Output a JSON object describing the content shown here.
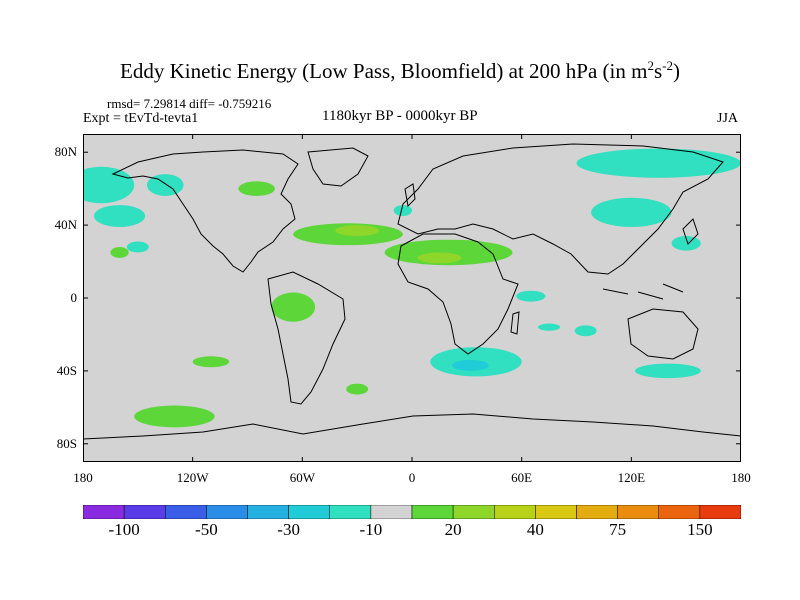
{
  "title": {
    "text": "Eddy Kinetic Energy (Low Pass, Bloomfield) at 200 hPa (in m",
    "sup1": "2",
    "mid": "s",
    "sup2": "-2",
    "end": ")"
  },
  "stats": "rmsd= 7.29814  diff= -0.759216",
  "experiment": "Expt = tEvTd-tevta1",
  "period": "1180kyr BP - 0000kyr BP",
  "season": "JJA",
  "colors": {
    "land_outline": "#000000",
    "neutral": "#d3d3d3",
    "frame": "#000000"
  },
  "x_axis": {
    "ticks": [
      {
        "lon": -180,
        "label": "180"
      },
      {
        "lon": -120,
        "label": "120W"
      },
      {
        "lon": -60,
        "label": "60W"
      },
      {
        "lon": 0,
        "label": "0"
      },
      {
        "lon": 60,
        "label": "60E"
      },
      {
        "lon": 120,
        "label": "120E"
      },
      {
        "lon": 180,
        "label": "180"
      }
    ]
  },
  "y_axis": {
    "ticks": [
      {
        "lat": 80,
        "label": "80N"
      },
      {
        "lat": 40,
        "label": "40N"
      },
      {
        "lat": 0,
        "label": "0"
      },
      {
        "lat": -40,
        "label": "40S"
      },
      {
        "lat": -80,
        "label": "80S"
      }
    ]
  },
  "colorbar": {
    "colors": [
      "#8a2be2",
      "#5a3be8",
      "#3a5ee8",
      "#2a8ee8",
      "#24b0e0",
      "#20ccd8",
      "#30e0c0",
      "#d3d3d3",
      "#5dd63a",
      "#8fd62a",
      "#b8d21a",
      "#d8c814",
      "#e4ac10",
      "#ea8c10",
      "#ec6410",
      "#e83c10"
    ],
    "labels": [
      {
        "boundary": 2,
        "text": "-100"
      },
      {
        "boundary": 4,
        "text": "-50"
      },
      {
        "boundary": 6,
        "text": "-30"
      },
      {
        "boundary": 8,
        "text": "-10"
      },
      {
        "boundary": 10,
        "text": "20"
      },
      {
        "boundary": 12,
        "text": "40"
      },
      {
        "boundary": 14,
        "text": "75"
      },
      {
        "boundary": 16,
        "text": "150"
      }
    ]
  },
  "fields": [
    {
      "value": -15,
      "color": "#30e0c0",
      "center": [
        -170,
        62
      ],
      "radius": [
        18,
        10
      ]
    },
    {
      "value": -15,
      "color": "#30e0c0",
      "center": [
        -160,
        45
      ],
      "radius": [
        14,
        6
      ]
    },
    {
      "value": -15,
      "color": "#30e0c0",
      "center": [
        -150,
        28
      ],
      "radius": [
        6,
        3
      ]
    },
    {
      "value": -15,
      "color": "#30e0c0",
      "center": [
        -135,
        62
      ],
      "radius": [
        10,
        6
      ]
    },
    {
      "value": -15,
      "color": "#30e0c0",
      "center": [
        135,
        74
      ],
      "radius": [
        45,
        8
      ]
    },
    {
      "value": -15,
      "color": "#30e0c0",
      "center": [
        120,
        47
      ],
      "radius": [
        22,
        8
      ]
    },
    {
      "value": -15,
      "color": "#30e0c0",
      "center": [
        150,
        30
      ],
      "radius": [
        8,
        4
      ]
    },
    {
      "value": -15,
      "color": "#30e0c0",
      "center": [
        65,
        1
      ],
      "radius": [
        8,
        3
      ]
    },
    {
      "value": -15,
      "color": "#30e0c0",
      "center": [
        35,
        -35
      ],
      "radius": [
        25,
        8
      ]
    },
    {
      "value": -20,
      "color": "#20ccd8",
      "center": [
        32,
        -37
      ],
      "radius": [
        10,
        3
      ]
    },
    {
      "value": -15,
      "color": "#30e0c0",
      "center": [
        95,
        -18
      ],
      "radius": [
        6,
        3
      ]
    },
    {
      "value": -15,
      "color": "#30e0c0",
      "center": [
        140,
        -40
      ],
      "radius": [
        18,
        4
      ]
    },
    {
      "value": -15,
      "color": "#30e0c0",
      "center": [
        75,
        -16
      ],
      "radius": [
        6,
        2
      ]
    },
    {
      "value": -15,
      "color": "#30e0c0",
      "center": [
        -5,
        48
      ],
      "radius": [
        5,
        3
      ]
    },
    {
      "value": 15,
      "color": "#5dd63a",
      "center": [
        -35,
        35
      ],
      "radius": [
        30,
        6
      ]
    },
    {
      "value": 15,
      "color": "#5dd63a",
      "center": [
        20,
        25
      ],
      "radius": [
        35,
        7
      ]
    },
    {
      "value": 25,
      "color": "#8fd62a",
      "center": [
        -30,
        37
      ],
      "radius": [
        12,
        3
      ]
    },
    {
      "value": 25,
      "color": "#8fd62a",
      "center": [
        15,
        22
      ],
      "radius": [
        12,
        3
      ]
    },
    {
      "value": 15,
      "color": "#5dd63a",
      "center": [
        -85,
        60
      ],
      "radius": [
        10,
        4
      ]
    },
    {
      "value": 15,
      "color": "#5dd63a",
      "center": [
        -65,
        -5
      ],
      "radius": [
        12,
        8
      ]
    },
    {
      "value": 15,
      "color": "#5dd63a",
      "center": [
        -110,
        -35
      ],
      "radius": [
        10,
        3
      ]
    },
    {
      "value": 15,
      "color": "#5dd63a",
      "center": [
        -30,
        -50
      ],
      "radius": [
        6,
        3
      ]
    },
    {
      "value": 15,
      "color": "#5dd63a",
      "center": [
        -130,
        -65
      ],
      "radius": [
        22,
        6
      ]
    },
    {
      "value": 15,
      "color": "#5dd63a",
      "center": [
        -160,
        25
      ],
      "radius": [
        5,
        3
      ]
    }
  ]
}
